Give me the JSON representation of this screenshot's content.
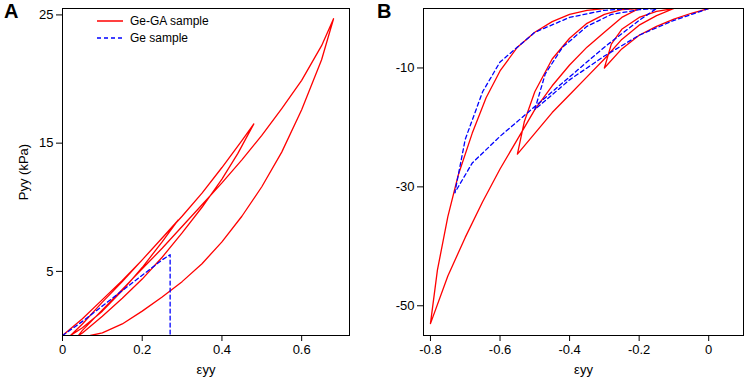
{
  "chart_data": [
    {
      "type": "line",
      "title": "A",
      "xlabel": "εyy",
      "ylabel": "Pyy (kPa)",
      "xlim": [
        0,
        0.72
      ],
      "ylim": [
        0,
        25.5
      ],
      "xticks": [
        0,
        0.2,
        0.4,
        0.6
      ],
      "yticks": [
        5,
        15,
        25
      ],
      "grid": false,
      "legend": "top-left",
      "series": [
        {
          "name": "Ge-GA sample",
          "color": "#ff0000",
          "line_style": "solid",
          "x": [
            0,
            0.05,
            0.1,
            0.15,
            0.2,
            0.25,
            0.29,
            0.25,
            0.2,
            0.15,
            0.1,
            0.05,
            0.02,
            0.05,
            0.1,
            0.15,
            0.2,
            0.25,
            0.3,
            0.35,
            0.4,
            0.45,
            0.48,
            0.44,
            0.4,
            0.35,
            0.3,
            0.25,
            0.2,
            0.15,
            0.1,
            0.05,
            0.04,
            0.05,
            0.1,
            0.15,
            0.2,
            0.25,
            0.3,
            0.35,
            0.4,
            0.45,
            0.5,
            0.55,
            0.6,
            0.65,
            0.68,
            0.65,
            0.6,
            0.55,
            0.5,
            0.45,
            0.4,
            0.35,
            0.3,
            0.25,
            0.2,
            0.15,
            0.1,
            0.07
          ],
          "values": [
            0,
            1.3,
            2.8,
            4.3,
            5.9,
            7.6,
            9.0,
            7.3,
            5.3,
            3.5,
            1.9,
            0.6,
            0,
            0.9,
            2.6,
            4.2,
            5.9,
            7.6,
            9.3,
            11.1,
            13.1,
            15.2,
            16.5,
            14.2,
            12.2,
            10.0,
            8.0,
            6.1,
            4.4,
            2.9,
            1.5,
            0.2,
            0,
            0.4,
            2.0,
            3.6,
            5.2,
            6.8,
            8.5,
            10.2,
            11.9,
            13.7,
            15.6,
            17.7,
            19.9,
            22.6,
            24.7,
            21.5,
            17.6,
            14.3,
            11.6,
            9.3,
            7.3,
            5.6,
            4.2,
            3.0,
            1.9,
            0.9,
            0.2,
            0
          ]
        },
        {
          "name": "Ge sample",
          "color": "#0000ff",
          "line_style": "dashed",
          "x": [
            0,
            0.05,
            0.1,
            0.15,
            0.2,
            0.25,
            0.27,
            0.27
          ],
          "values": [
            0,
            1.1,
            2.3,
            3.5,
            4.7,
            5.9,
            6.3,
            0
          ]
        }
      ]
    },
    {
      "type": "line",
      "title": "B",
      "xlabel": "εyy",
      "xlim": [
        -0.82,
        0.1
      ],
      "ylim": [
        -55,
        0
      ],
      "xticks": [
        -0.8,
        -0.6,
        -0.4,
        -0.2,
        0
      ],
      "yticks": [
        -10,
        -30,
        -50
      ],
      "grid": false,
      "series": [
        {
          "color": "#ff0000",
          "line_style": "solid",
          "x": [
            0,
            -0.05,
            -0.1,
            -0.15,
            -0.2,
            -0.25,
            -0.3,
            -0.28,
            -0.25,
            -0.2,
            -0.15,
            -0.1,
            -0.15,
            -0.2,
            -0.25,
            -0.3,
            -0.35,
            -0.4,
            -0.45,
            -0.5,
            -0.55,
            -0.53,
            -0.5,
            -0.45,
            -0.4,
            -0.35,
            -0.3,
            -0.25,
            -0.2,
            -0.25,
            -0.3,
            -0.35,
            -0.4,
            -0.45,
            -0.5,
            -0.55,
            -0.6,
            -0.65,
            -0.7,
            -0.75,
            -0.8,
            -0.78,
            -0.75,
            -0.72,
            -0.68,
            -0.64,
            -0.6,
            -0.55,
            -0.5,
            -0.45,
            -0.4,
            -0.35,
            -0.3
          ],
          "values": [
            0,
            -0.8,
            -1.8,
            -3.0,
            -4.5,
            -6.8,
            -10,
            -6.0,
            -3.5,
            -1.5,
            -0.5,
            0,
            -1.2,
            -2.8,
            -5.2,
            -8.5,
            -11.5,
            -14.5,
            -17.5,
            -21,
            -24.5,
            -19,
            -14,
            -8.5,
            -5,
            -2.5,
            -1,
            -0.2,
            0,
            -1.5,
            -4,
            -6.5,
            -9.5,
            -13,
            -17,
            -22,
            -27,
            -32.5,
            -38.5,
            -45,
            -53,
            -44,
            -35,
            -28,
            -21,
            -15,
            -10.5,
            -6.5,
            -4,
            -2.2,
            -1,
            -0.3,
            0
          ]
        },
        {
          "color": "#0000ff",
          "line_style": "dashed",
          "x": [
            0,
            -0.1,
            -0.2,
            -0.3,
            -0.4,
            -0.5,
            -0.47,
            -0.42,
            -0.35,
            -0.28,
            -0.2,
            -0.15,
            -0.2,
            -0.3,
            -0.4,
            -0.5,
            -0.6,
            -0.68,
            -0.73,
            -0.7,
            -0.65,
            -0.6,
            -0.5,
            -0.4,
            -0.3,
            -0.22
          ],
          "values": [
            0,
            -2,
            -4.5,
            -8,
            -12,
            -17,
            -11,
            -6.5,
            -3,
            -1,
            -0.2,
            0,
            -2,
            -6.5,
            -11.5,
            -16.5,
            -21.5,
            -26,
            -31,
            -22,
            -14,
            -9,
            -4,
            -1.5,
            -0.3,
            0
          ]
        }
      ]
    }
  ]
}
